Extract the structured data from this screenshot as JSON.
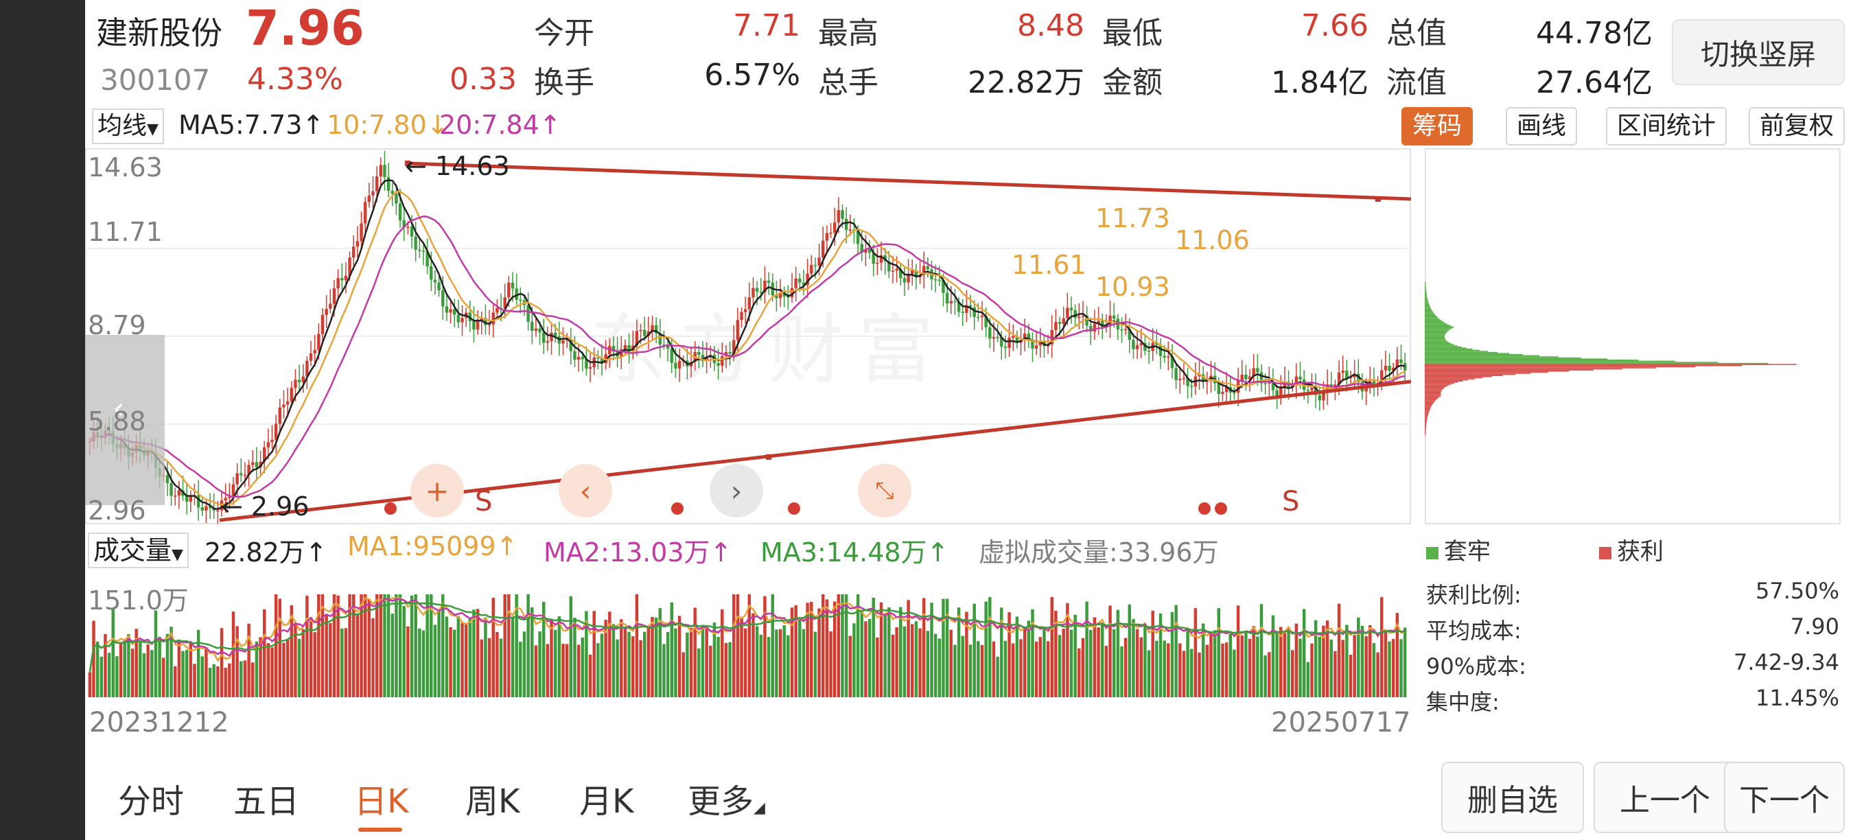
{
  "header": {
    "name": "建新股份",
    "price": "7.96",
    "code": "300107",
    "change_pct": "4.33%",
    "change": "0.33",
    "quotes": [
      {
        "label": "今开",
        "value": "7.71",
        "color": "#d33c30"
      },
      {
        "label": "最高",
        "value": "8.48",
        "color": "#d33c30"
      },
      {
        "label": "最低",
        "value": "7.66",
        "color": "#d33c30"
      },
      {
        "label": "总值",
        "value": "44.78亿",
        "color": "#333333"
      },
      {
        "label": "换手",
        "value": "6.57%",
        "color": "#333333"
      },
      {
        "label": "总手",
        "value": "22.82万",
        "color": "#333333"
      },
      {
        "label": "金额",
        "value": "1.84亿",
        "color": "#333333"
      },
      {
        "label": "流值",
        "value": "27.64亿",
        "color": "#333333"
      }
    ],
    "switch_button": "切换竖屏"
  },
  "ma_bar": {
    "select": "均线",
    "ma5": "MA5:7.73↑",
    "ma10": "10:7.80↓",
    "ma20": "20:7.84↑",
    "tabs": [
      "筹码",
      "画线",
      "区间统计",
      "前复权"
    ]
  },
  "price_axis": [
    "14.63",
    "11.71",
    "8.79",
    "5.88",
    "2.96"
  ],
  "annotations": {
    "high": "← 14.63",
    "low": "← 2.96",
    "p1": "11.61",
    "p2": "11.73",
    "p3": "10.93",
    "p4": "11.06",
    "s_mark": "S",
    "watermark": "东方财富"
  },
  "volume_bar": {
    "select": "成交量",
    "vol": "22.82万↑",
    "ma1": "MA1:95099↑",
    "ma2": "MA2:13.03万↑",
    "ma3": "MA3:14.48万↑",
    "virtual": "虚拟成交量:33.96万",
    "axis_top": "151.0万"
  },
  "dates": {
    "start": "20231212",
    "end": "20250717"
  },
  "chip_panel": {
    "legend": [
      {
        "label": "套牢",
        "color": "#5cb24a"
      },
      {
        "label": "获利",
        "color": "#d9534f"
      }
    ],
    "stats": [
      {
        "label": "获利比例:",
        "value": "57.50%"
      },
      {
        "label": "平均成本:",
        "value": "7.90"
      },
      {
        "label": "90%成本:",
        "value": "7.42-9.34"
      },
      {
        "label": "集中度:",
        "value": "11.45%"
      }
    ]
  },
  "bottom_tabs": [
    "分时",
    "五日",
    "日K",
    "周K",
    "月K",
    "更多"
  ],
  "bottom_buttons": [
    "删自选",
    "上一个",
    "下一个"
  ],
  "colors": {
    "up": "#d33c30",
    "down": "#3a9c3a",
    "ma5": "#222222",
    "ma10": "#e7a43a",
    "ma20": "#c23aa6",
    "trend": "#c0392b",
    "accent": "#e0622a"
  },
  "chart_data": {
    "type": "candlestick",
    "title": "",
    "ylim": [
      2.96,
      14.63
    ],
    "x_range": [
      "20231212",
      "20250717"
    ],
    "close_path": [
      5.3,
      5.4,
      5.2,
      4.8,
      4.2,
      3.5,
      3.0,
      3.2,
      3.8,
      4.6,
      5.6,
      6.8,
      8.2,
      9.6,
      11.0,
      13.0,
      14.2,
      13.0,
      11.5,
      10.4,
      9.5,
      9.0,
      9.6,
      10.3,
      9.4,
      8.8,
      8.4,
      8.1,
      7.9,
      8.3,
      9.0,
      8.7,
      8.1,
      7.9,
      8.0,
      8.4,
      9.8,
      10.8,
      9.9,
      10.6,
      11.8,
      12.6,
      12.2,
      11.2,
      10.9,
      11.0,
      10.7,
      10.2,
      9.6,
      9.1,
      8.7,
      8.5,
      8.6,
      9.2,
      9.5,
      9.3,
      9.1,
      8.8,
      8.4,
      7.9,
      7.4,
      7.2,
      7.1,
      7.3,
      7.4,
      7.2,
      7.1,
      7.0,
      7.2,
      7.4,
      7.3,
      7.5,
      7.96
    ],
    "volume_top": "151.0万"
  }
}
